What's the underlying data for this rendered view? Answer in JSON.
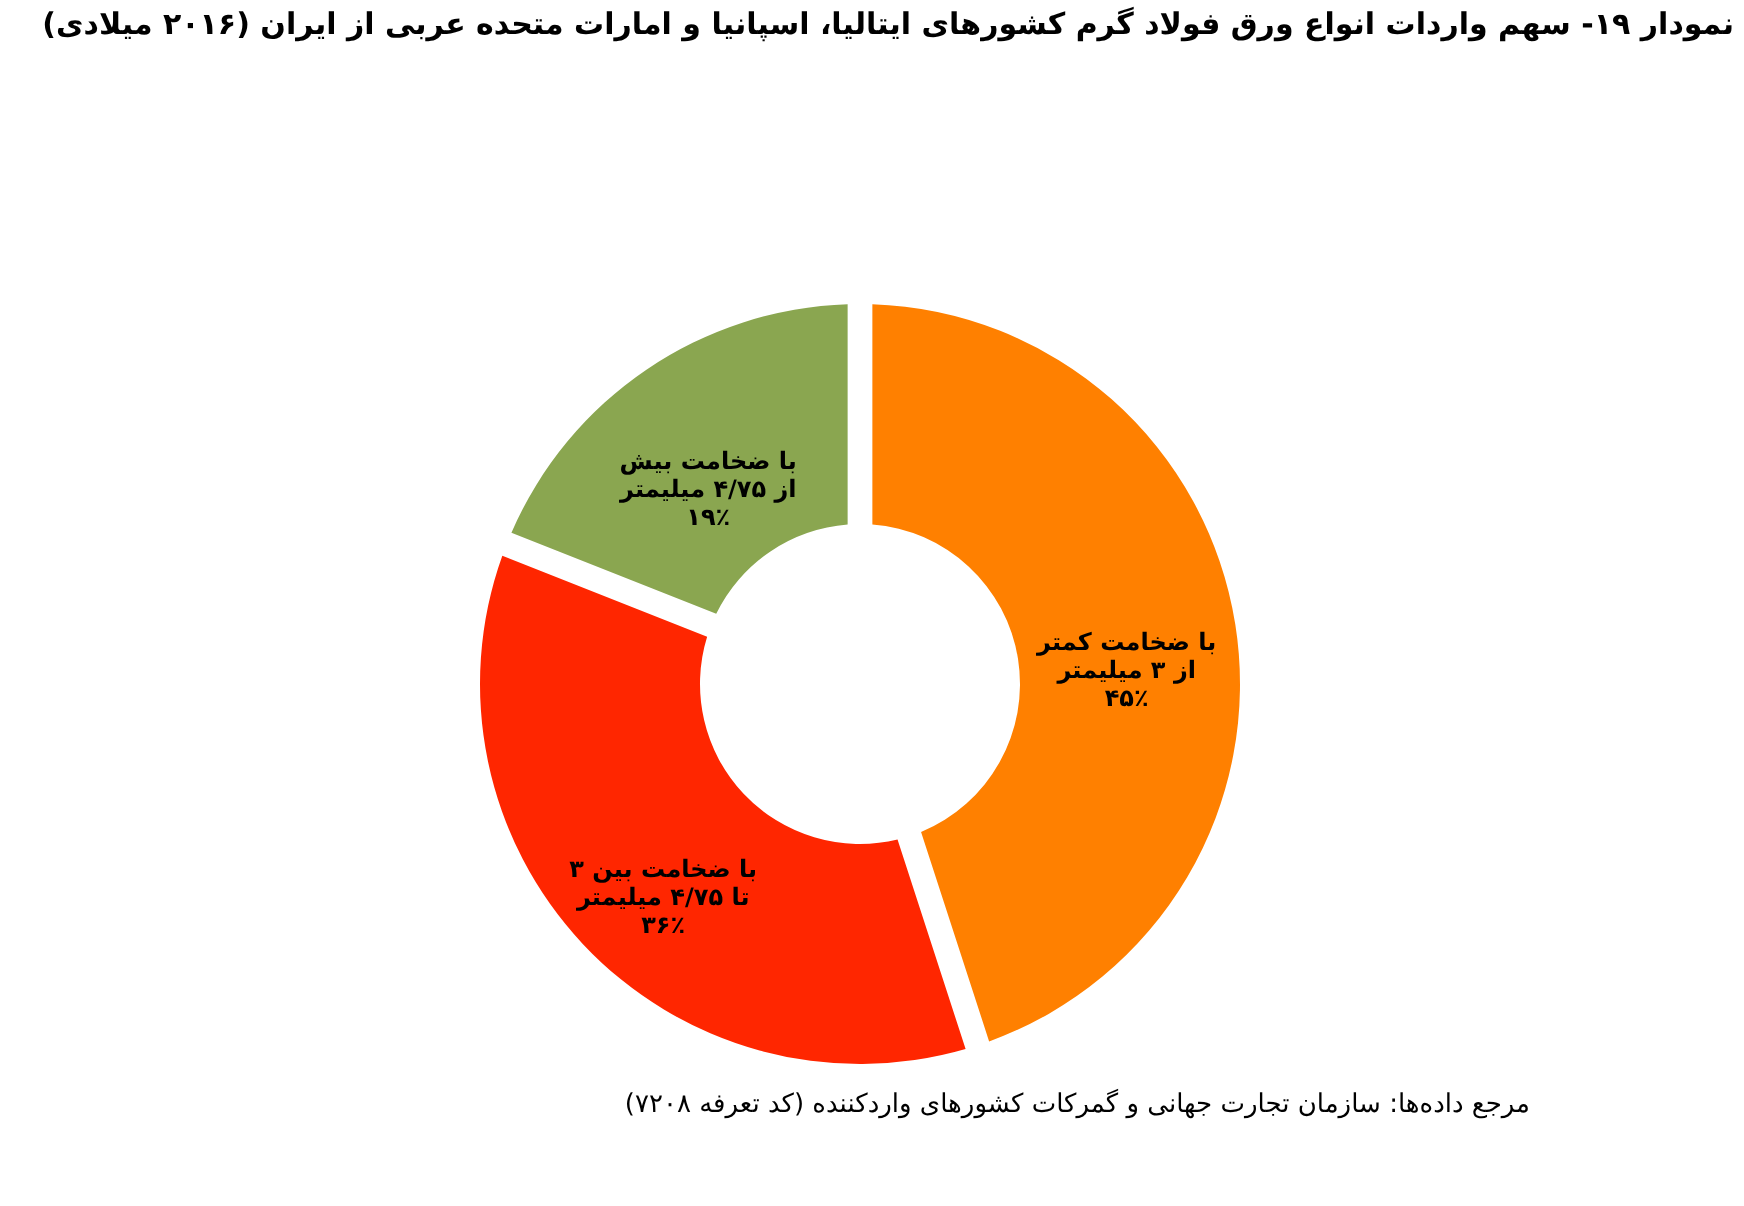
{
  "chart_data": {
    "type": "donut",
    "title": "نمودار ۱۹- سهم واردات انواع ورق فولاد گرم کشورهای ایتالیا، اسپانیا و امارات متحده عربی از ایران (۲۰۱۶ میلادی)",
    "categories": [
      "با ضخامت کمتر\nاز ۳ میلیمتر",
      "با ضخامت بین ۳\nتا ۴/۷۵ میلیمتر",
      "با ضخامت بیش\nاز ۴/۷۵ میلیمتر"
    ],
    "values": [
      45,
      36,
      19
    ],
    "value_labels": [
      "۴۵٪",
      "۳۶٪",
      "۱۹٪"
    ],
    "colors": [
      "#ff8000",
      "#ff2600",
      "#8aa650"
    ],
    "annotations": [
      "مرجع داده‌ها: سازمان تجارت جهانی و گمرکات کشورهای واردکننده (کد تعرفه ۷۲۰۸)"
    ],
    "legend": false
  }
}
